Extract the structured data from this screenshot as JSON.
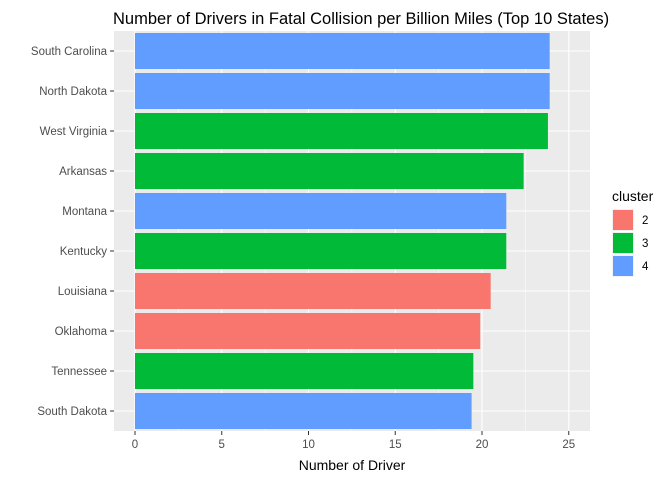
{
  "chart_data": {
    "type": "bar",
    "orientation": "horizontal",
    "title": "Number of Drivers in Fatal Collision per Billion Miles (Top 10 States)",
    "xlabel": "Number of Driver",
    "ylabel": "",
    "xlim": [
      0,
      25
    ],
    "x_ticks": [
      "0",
      "5",
      "10",
      "15",
      "20",
      "25"
    ],
    "grid": true,
    "legend_position": "right",
    "legend_title": "cluster",
    "legend": [
      {
        "label": "2",
        "color": "#F8766D"
      },
      {
        "label": "3",
        "color": "#00BA38"
      },
      {
        "label": "4",
        "color": "#619CFF"
      }
    ],
    "categories": [
      "South Carolina",
      "North Dakota",
      "West Virginia",
      "Arkansas",
      "Montana",
      "Kentucky",
      "Louisiana",
      "Oklahoma",
      "Tennessee",
      "South Dakota"
    ],
    "values": [
      23.9,
      23.9,
      23.8,
      22.4,
      21.4,
      21.4,
      20.5,
      19.9,
      19.5,
      19.4
    ],
    "clusters": [
      "4",
      "4",
      "3",
      "3",
      "4",
      "3",
      "2",
      "2",
      "3",
      "4"
    ]
  }
}
